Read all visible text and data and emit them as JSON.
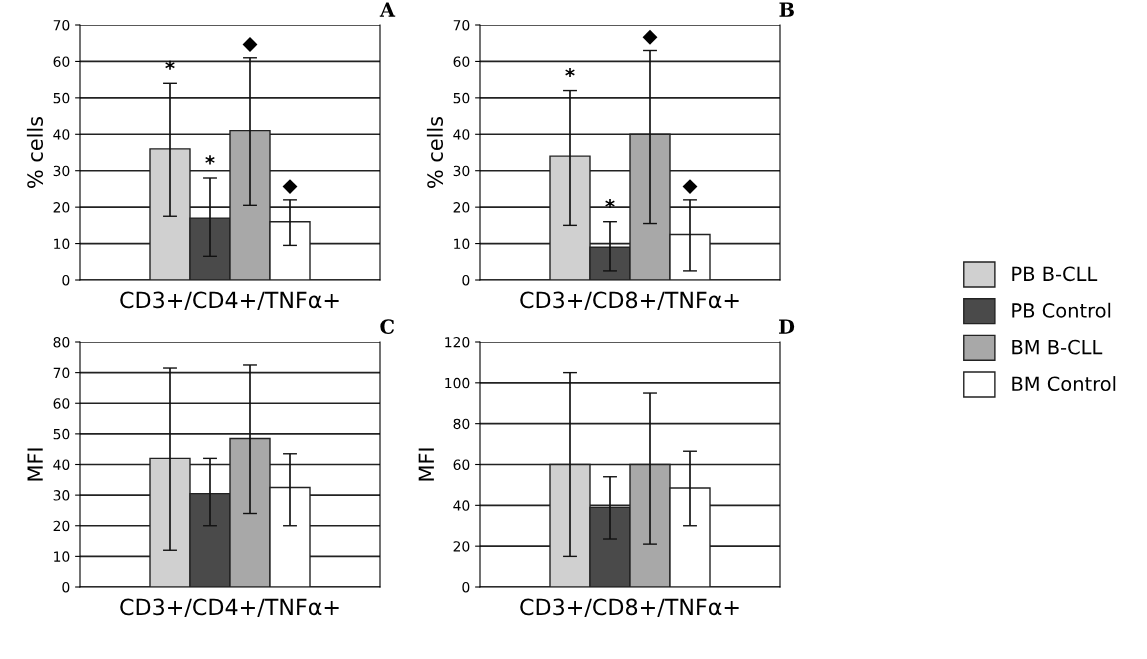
{
  "chart_data": [
    {
      "type": "bar",
      "title": "A",
      "ylabel": "% cells",
      "categories": [
        "CD3+/CD4+/TNFα+"
      ],
      "ylim": [
        0,
        70
      ],
      "yticks": [
        0,
        10,
        20,
        30,
        40,
        50,
        60,
        70
      ],
      "grid": "y",
      "legend": false,
      "series": [
        {
          "color": "#d0d0d0",
          "values": [
            36
          ],
          "errors": [
            [
              17.5,
              54
            ]
          ]
        },
        {
          "color": "#4a4a4a",
          "values": [
            17
          ],
          "errors": [
            [
              6.5,
              28
            ]
          ]
        },
        {
          "color": "#a8a8a8",
          "values": [
            41
          ],
          "errors": [
            [
              20.5,
              61
            ]
          ]
        },
        {
          "color": "#ffffff",
          "values": [
            16
          ],
          "errors": [
            [
              9.5,
              22
            ]
          ]
        }
      ],
      "annotations": [
        "*",
        "*",
        "◆",
        "◆"
      ]
    },
    {
      "type": "bar",
      "title": "B",
      "ylabel": "% cells",
      "categories": [
        "CD3+/CD8+/TNFα+"
      ],
      "ylim": [
        0,
        70
      ],
      "yticks": [
        0,
        10,
        20,
        30,
        40,
        50,
        60,
        70
      ],
      "grid": "y",
      "legend": "right",
      "series": [
        {
          "name": "PB B-CLL",
          "color": "#d0d0d0",
          "values": [
            34
          ],
          "errors": [
            [
              15,
              52
            ]
          ]
        },
        {
          "name": "PB Control",
          "color": "#4a4a4a",
          "values": [
            9
          ],
          "errors": [
            [
              2.5,
              16
            ]
          ]
        },
        {
          "name": "BM B-CLL",
          "color": "#a8a8a8",
          "values": [
            40
          ],
          "errors": [
            [
              15.5,
              63
            ]
          ]
        },
        {
          "name": "BM Control",
          "color": "#ffffff",
          "values": [
            12.5
          ],
          "errors": [
            [
              2.5,
              22
            ]
          ]
        }
      ],
      "annotations": [
        "*",
        "*",
        "◆",
        "◆"
      ]
    },
    {
      "type": "bar",
      "title": "C",
      "ylabel": "MFI",
      "categories": [
        "CD3+/CD4+/TNFα+"
      ],
      "ylim": [
        0,
        80
      ],
      "yticks": [
        0,
        10,
        20,
        30,
        40,
        50,
        60,
        70,
        80
      ],
      "grid": "y",
      "legend": false,
      "series": [
        {
          "color": "#d0d0d0",
          "values": [
            42
          ],
          "errors": [
            [
              12,
              71.5
            ]
          ]
        },
        {
          "color": "#4a4a4a",
          "values": [
            30.5
          ],
          "errors": [
            [
              20,
              42
            ]
          ]
        },
        {
          "color": "#a8a8a8",
          "values": [
            48.5
          ],
          "errors": [
            [
              24,
              72.5
            ]
          ]
        },
        {
          "color": "#ffffff",
          "values": [
            32.5
          ],
          "errors": [
            [
              20,
              43.5
            ]
          ]
        }
      ]
    },
    {
      "type": "bar",
      "title": "D",
      "ylabel": "MFI",
      "categories": [
        "CD3+/CD8+/TNFα+"
      ],
      "ylim": [
        0,
        120
      ],
      "yticks": [
        0,
        20,
        40,
        60,
        80,
        100,
        120
      ],
      "grid": "y",
      "legend": false,
      "series": [
        {
          "color": "#d0d0d0",
          "values": [
            60
          ],
          "errors": [
            [
              15,
              105
            ]
          ]
        },
        {
          "color": "#4a4a4a",
          "values": [
            39
          ],
          "errors": [
            [
              23.5,
              54
            ]
          ]
        },
        {
          "color": "#a8a8a8",
          "values": [
            60
          ],
          "errors": [
            [
              21,
              95
            ]
          ]
        },
        {
          "color": "#ffffff",
          "values": [
            48.5
          ],
          "errors": [
            [
              30,
              66.5
            ]
          ]
        }
      ]
    }
  ]
}
